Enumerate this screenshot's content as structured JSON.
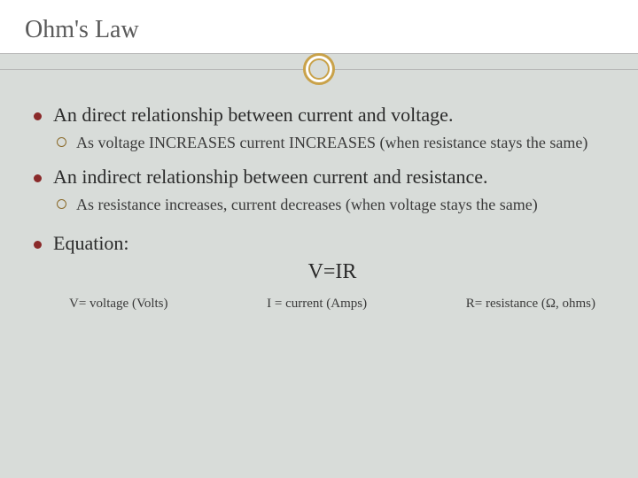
{
  "title": "Ohm's Law",
  "colors": {
    "accent_ring": "#c9a24a",
    "bullet_fill": "#8a2a2a",
    "bullet_hollow": "#8a6a2a",
    "body_bg": "#d8dcd9",
    "header_bg": "#ffffff",
    "text": "#3a3a3a"
  },
  "bullets": {
    "b1": {
      "text": "An direct relationship between current and voltage.",
      "sub1": "As voltage INCREASES current INCREASES (when resistance stays the same)"
    },
    "b2": {
      "text": "An indirect relationship between current and resistance.",
      "sub1": "As resistance increases, current decreases (when voltage stays the same)"
    },
    "b3": {
      "text": "Equation:",
      "equation": "V=IR",
      "defs": {
        "v": "V= voltage (Volts)",
        "i": "I = current (Amps)",
        "r": "R= resistance (Ω, ohms)"
      }
    }
  }
}
